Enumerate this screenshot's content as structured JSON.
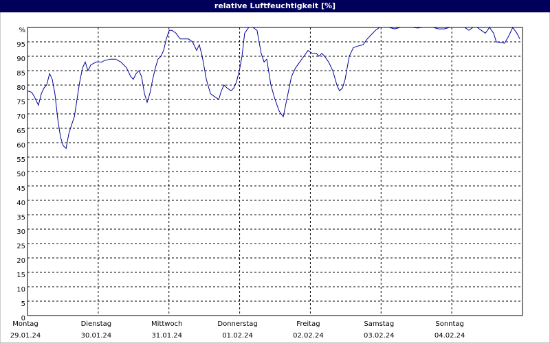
{
  "chart_data": {
    "type": "line",
    "title": "relative Luftfeuchtigkeit [%]",
    "xlim": [
      0,
      168
    ],
    "ylim": [
      0,
      100
    ],
    "yticks": [
      0,
      5,
      10,
      15,
      20,
      25,
      30,
      35,
      40,
      45,
      50,
      55,
      60,
      65,
      70,
      75,
      80,
      85,
      90,
      95,
      {
        "value": 100,
        "label": "%"
      }
    ],
    "xticks": [
      {
        "value": 0,
        "label": "Montag"
      },
      {
        "value": 24,
        "label": "Dienstag"
      },
      {
        "value": 48,
        "label": "Mittwoch"
      },
      {
        "value": 72,
        "label": "Donnerstag"
      },
      {
        "value": 96,
        "label": "Freitag"
      },
      {
        "value": 120,
        "label": "Samstag"
      },
      {
        "value": 144,
        "label": "Sonntag"
      }
    ],
    "xtick_dates": [
      "29.01.24",
      "30.01.24",
      "31.01.24",
      "01.02.24",
      "02.02.24",
      "03.02.24",
      "04.02.24"
    ],
    "grid": true,
    "x": [
      0,
      1.4,
      2.3,
      3.7,
      4.7,
      5.6,
      6.5,
      7.5,
      8.4,
      9.3,
      10.3,
      11.2,
      12.1,
      13.1,
      14,
      14.9,
      15.9,
      16.8,
      17.7,
      18.7,
      19.6,
      20.5,
      21.5,
      23.3,
      25.2,
      26.1,
      28,
      29.9,
      31.7,
      33.6,
      35,
      35.9,
      36.9,
      37.8,
      38.7,
      39.7,
      40.6,
      41.5,
      42.5,
      43.4,
      44.3,
      45.3,
      46.2,
      47.1,
      48.1,
      49,
      50.4,
      51.8,
      53.2,
      54.6,
      56,
      57.4,
      58.3,
      59.3,
      60.7,
      62.1,
      63.5,
      64.9,
      65.8,
      66.7,
      67.7,
      69.1,
      70,
      70.9,
      71.9,
      72.8,
      73.7,
      75.1,
      76.5,
      77.9,
      79.3,
      80.3,
      81.2,
      82.6,
      84,
      85.4,
      86.8,
      88.2,
      89.6,
      91,
      92.4,
      93.8,
      95.2,
      96.6,
      98,
      98.9,
      99.9,
      100.8,
      102.2,
      103.6,
      105,
      105.9,
      106.9,
      107.8,
      109.2,
      110.6,
      112,
      113.9,
      115.3,
      116.7,
      118.1,
      119.5,
      120.9,
      122.7,
      124.6,
      126.5,
      128.3,
      130.7,
      132.5,
      133.9,
      135.8,
      137.7,
      139.5,
      141.4,
      143.3,
      145.1,
      147,
      148.4,
      149.8,
      151.2,
      152.6,
      154,
      155.4,
      156.8,
      158.2,
      159.1,
      160.5,
      161.9,
      163.3,
      164.7,
      166.1,
      167.1
    ],
    "series": [
      {
        "color": "#000099",
        "values": [
          78,
          77.5,
          76,
          73,
          77,
          79,
          80,
          84,
          82,
          77,
          68,
          62,
          59,
          58,
          63,
          66,
          69,
          75,
          81,
          86,
          88,
          85,
          87,
          88,
          88,
          88.5,
          89,
          89,
          88,
          86,
          83,
          82,
          84,
          85,
          83,
          77,
          74,
          77,
          82,
          86,
          89,
          90,
          92,
          96,
          99,
          99,
          98,
          96,
          96,
          96,
          95,
          92,
          94,
          90,
          82,
          77,
          76,
          75,
          78,
          80,
          79,
          78,
          79,
          81,
          85,
          90,
          98,
          100,
          100,
          99,
          91,
          88,
          89,
          80,
          75,
          71,
          69,
          76,
          83,
          86,
          88,
          90,
          92,
          91,
          91,
          90,
          91,
          90,
          88,
          85,
          80,
          78,
          79,
          82,
          90,
          93,
          93.5,
          94,
          96,
          97.5,
          99,
          100,
          100,
          100,
          99.5,
          100,
          100,
          100,
          99.8,
          100,
          100,
          100,
          99.5,
          99.5,
          100,
          100,
          100,
          100,
          99,
          100,
          100,
          99,
          98,
          100,
          98,
          95,
          94.8,
          94.5,
          97,
          100,
          98,
          96
        ]
      }
    ]
  }
}
